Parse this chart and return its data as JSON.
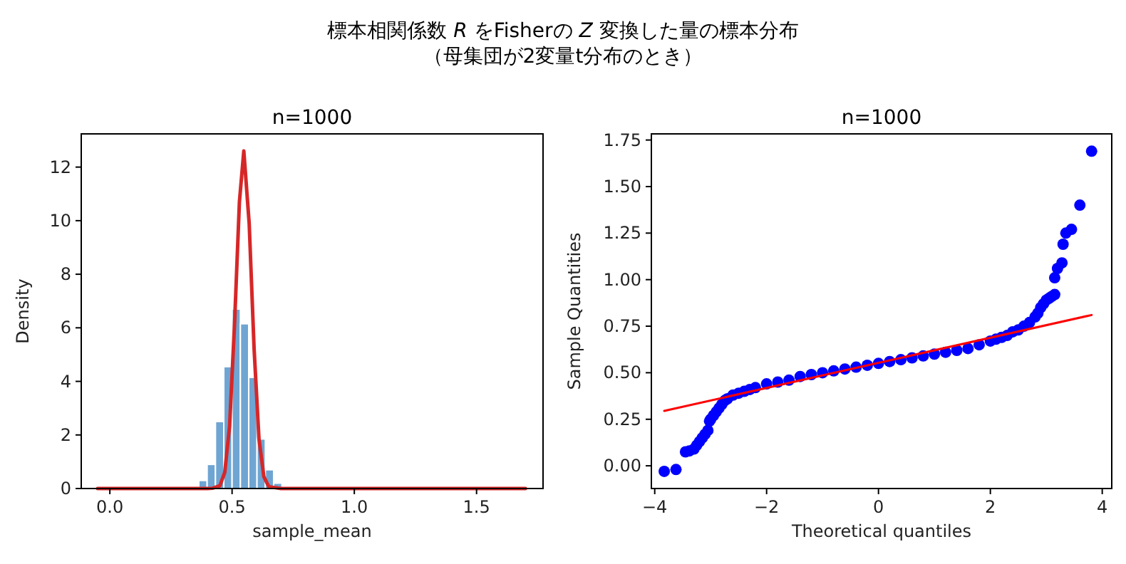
{
  "chart_data": [
    {
      "type": "histogram",
      "title": "n=1000",
      "xlabel": "sample_mean",
      "ylabel": "Density",
      "annotations": [
        "標本相関係数 *R* をFisherの *Z* 変換した量の標本分布",
        "（母集団が2変量t分布のとき）"
      ],
      "series": [
        {
          "type": "histogram",
          "color": "#6fa5d2",
          "bins": [
            0.364,
            0.398,
            0.432,
            0.466,
            0.5,
            0.534,
            0.568,
            0.602,
            0.636,
            0.67,
            0.704
          ],
          "values": [
            0.3,
            0.9,
            2.5,
            4.55,
            6.7,
            6.15,
            4.15,
            1.85,
            0.7,
            0.2
          ]
        },
        {
          "type": "line",
          "color": "#d62728",
          "x": [
            -0.05,
            0.4,
            0.42,
            0.45,
            0.47,
            0.49,
            0.51,
            0.53,
            0.548,
            0.57,
            0.59,
            0.61,
            0.63,
            0.65,
            0.7,
            1.7
          ],
          "values": [
            0,
            0,
            0.01,
            0.1,
            0.6,
            2.35,
            6.13,
            10.7,
            12.6,
            9.89,
            5.23,
            1.85,
            0.44,
            0.07,
            0,
            0
          ]
        }
      ],
      "xlim": [
        -0.117,
        1.772
      ],
      "ylim": [
        0,
        13.24
      ],
      "xticks": [
        {
          "value": 0,
          "label": "0.0"
        },
        0.5,
        {
          "value": 1,
          "label": "1.0"
        },
        1.5
      ],
      "yticks": [
        0,
        2,
        4,
        6,
        8,
        10,
        12
      ],
      "grid": false
    },
    {
      "type": "scatter",
      "title": "n=1000",
      "xlabel": "Theoretical quantiles",
      "ylabel": "Sample Quantities",
      "series": [
        {
          "type": "scatter",
          "marker": "circle",
          "color": "#0000ff",
          "x": [
            -3.83,
            -3.62,
            -3.45,
            -3.38,
            -3.3,
            -3.25,
            -3.2,
            -3.15,
            -3.1,
            -3.05,
            -3.02,
            -3.0,
            -2.95,
            -2.9,
            -2.85,
            -2.8,
            -2.75,
            -2.7,
            -2.6,
            -2.5,
            -2.4,
            -2.3,
            -2.2,
            -2.0,
            -1.8,
            -1.6,
            -1.4,
            -1.2,
            -1.0,
            -0.8,
            -0.6,
            -0.4,
            -0.2,
            0,
            0.2,
            0.4,
            0.6,
            0.8,
            1.0,
            1.2,
            1.4,
            1.6,
            1.8,
            2.0,
            2.1,
            2.2,
            2.3,
            2.4,
            2.5,
            2.6,
            2.7,
            2.8,
            2.85,
            2.9,
            2.95,
            3.0,
            3.05,
            3.1,
            3.15,
            3.15,
            3.2,
            3.28,
            3.3,
            3.35,
            3.45,
            3.6,
            3.81
          ],
          "values": [
            -0.03,
            -0.02,
            0.075,
            0.08,
            0.09,
            0.11,
            0.13,
            0.15,
            0.17,
            0.19,
            0.24,
            0.25,
            0.27,
            0.29,
            0.31,
            0.33,
            0.35,
            0.36,
            0.38,
            0.39,
            0.4,
            0.41,
            0.42,
            0.44,
            0.45,
            0.46,
            0.48,
            0.49,
            0.5,
            0.51,
            0.52,
            0.53,
            0.54,
            0.55,
            0.56,
            0.57,
            0.58,
            0.59,
            0.6,
            0.61,
            0.62,
            0.63,
            0.65,
            0.67,
            0.68,
            0.69,
            0.7,
            0.72,
            0.73,
            0.75,
            0.77,
            0.8,
            0.82,
            0.85,
            0.87,
            0.89,
            0.9,
            0.91,
            0.92,
            1.01,
            1.06,
            1.09,
            1.19,
            1.25,
            1.27,
            1.4,
            1.69
          ]
        },
        {
          "type": "line",
          "color": "#ff0000",
          "x": [
            -3.83,
            3.81
          ],
          "values": [
            0.295,
            0.81
          ]
        }
      ],
      "xlim": [
        -4.06,
        4.17
      ],
      "ylim": [
        -0.122,
        1.783
      ],
      "xticks": [
        {
          "value": -4,
          "label": "−4"
        },
        {
          "value": -2,
          "label": "−2"
        },
        0,
        2,
        4
      ],
      "yticks": [
        {
          "value": 0,
          "label": "0.00"
        },
        0.25,
        {
          "value": 0.5,
          "label": "0.50"
        },
        0.75,
        {
          "value": 1,
          "label": "1.00"
        },
        1.25,
        {
          "value": 1.5,
          "label": "1.50"
        },
        1.75
      ],
      "grid": false
    }
  ]
}
